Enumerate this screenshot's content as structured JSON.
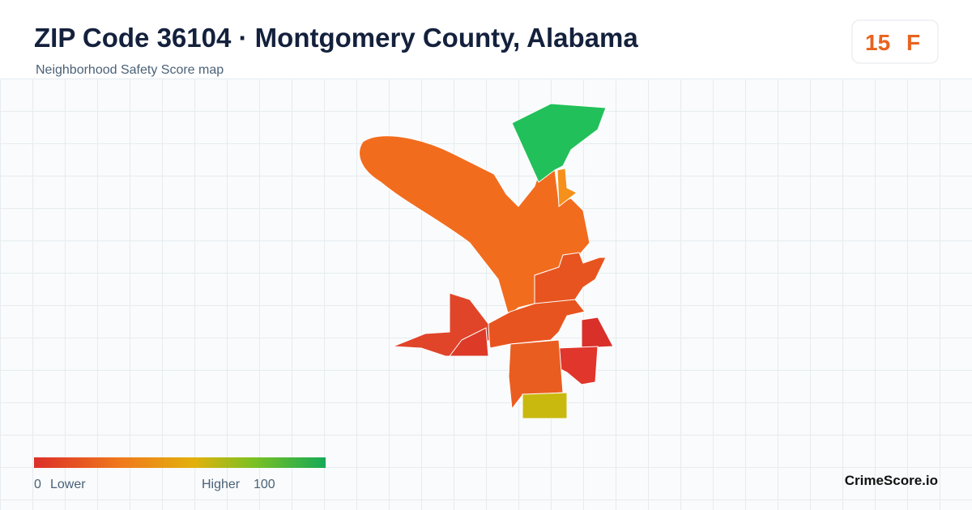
{
  "header": {
    "title": "ZIP Code 36104 · Montgomery County, Alabama",
    "subtitle": "Neighborhood Safety Score map"
  },
  "badge": {
    "score": "15",
    "grade": "F"
  },
  "legend": {
    "min": "0",
    "min_label": "Lower",
    "max_label": "Higher",
    "max": "100"
  },
  "footer": {
    "brand": "CrimeScore.io"
  }
}
